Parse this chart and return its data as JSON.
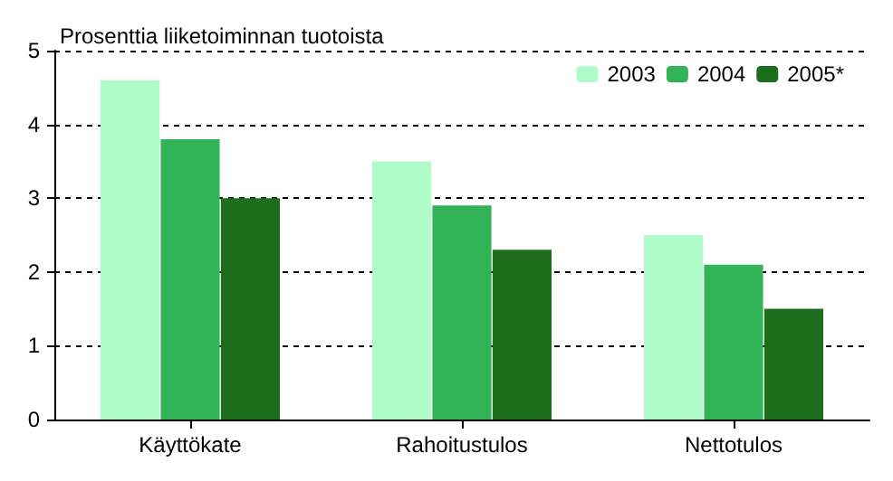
{
  "chart_data": {
    "type": "bar",
    "ylabel": "Prosenttia liiketoiminnan tuotoista",
    "categories": [
      "Käyttökate",
      "Rahoitustulos",
      "Nettotulos"
    ],
    "series": [
      {
        "name": "2003",
        "color": "#b0fcc8",
        "values": [
          4.6,
          3.5,
          2.5
        ]
      },
      {
        "name": "2004",
        "color": "#33b357",
        "values": [
          3.8,
          2.9,
          2.1
        ]
      },
      {
        "name": "2005*",
        "color": "#1c6e1c",
        "values": [
          3.0,
          2.3,
          1.5
        ]
      }
    ],
    "ylim": [
      0,
      5
    ],
    "yticks": [
      0,
      1,
      2,
      3,
      4,
      5
    ],
    "grid": "y",
    "legend": "top right"
  }
}
